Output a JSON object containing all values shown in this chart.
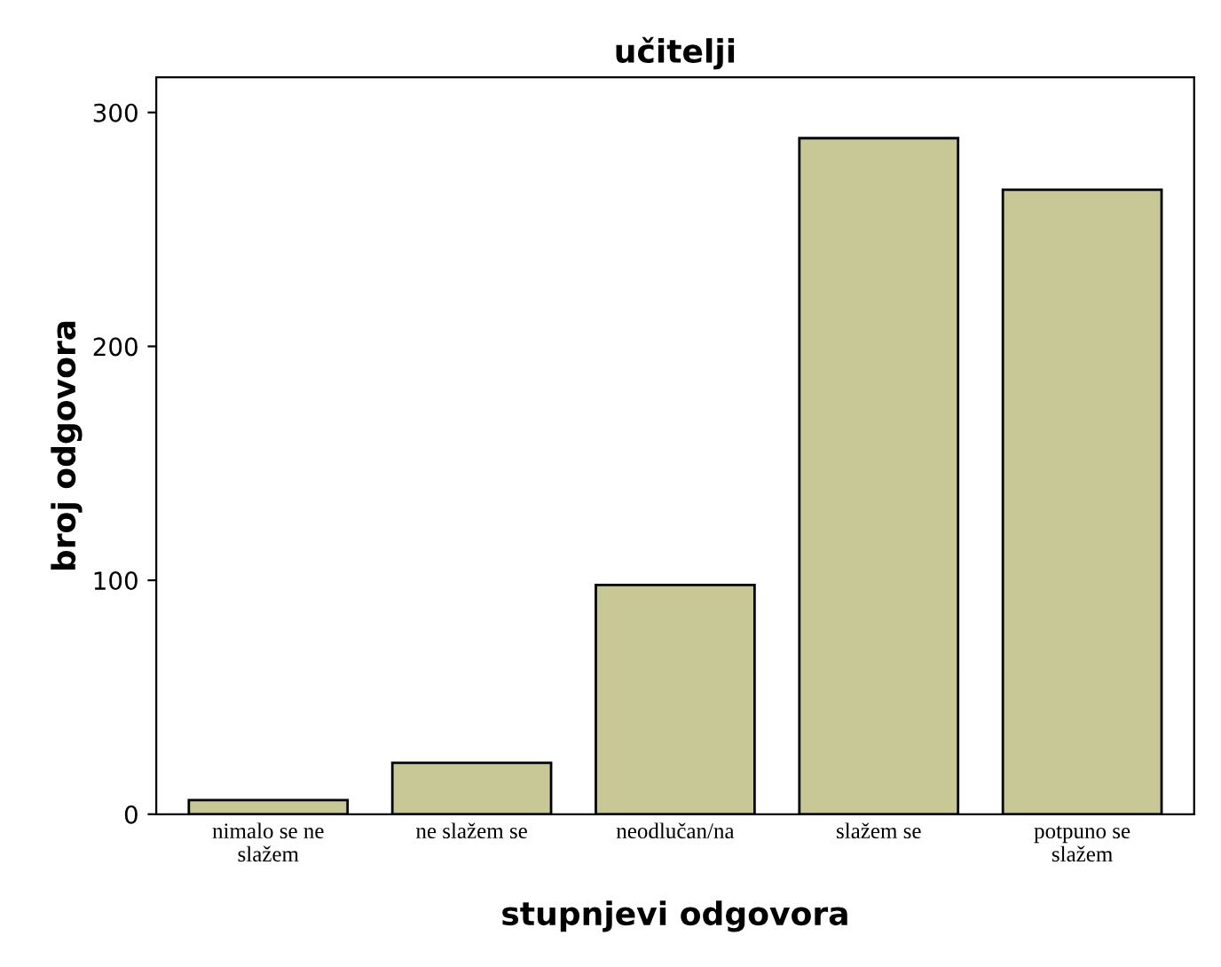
{
  "chart_data": {
    "type": "bar",
    "title": "učitelji",
    "xlabel": "stupnjevi odgovora",
    "ylabel": "broj odgovora",
    "categories": [
      "nimalo se ne\nslažem",
      "ne slažem se",
      "neodlučan/na",
      "slažem se",
      "potpuno se\nslažem"
    ],
    "values": [
      6,
      22,
      98,
      289,
      267
    ],
    "color": "#c8c896",
    "ylim": [
      0,
      315
    ],
    "yticks": [
      0,
      100,
      200,
      300
    ],
    "grid": false
  }
}
